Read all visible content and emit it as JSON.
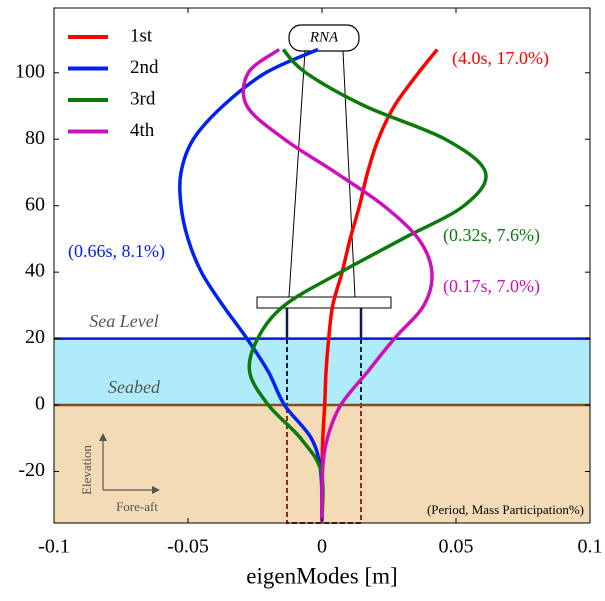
{
  "chart_data": {
    "type": "line",
    "x_label": "eigenModes [m]",
    "xlim": [
      -0.1,
      0.1
    ],
    "xticks": [
      -0.1,
      -0.05,
      0,
      0.05,
      0.1
    ],
    "ylim": [
      -35.5,
      119.5
    ],
    "yticks": [
      -20,
      0,
      20,
      40,
      60,
      80,
      100
    ],
    "y": [
      -35,
      -20,
      -10,
      0,
      10,
      20,
      30,
      40,
      50,
      60,
      70,
      80,
      90,
      100,
      107
    ],
    "series": [
      {
        "name": "1st",
        "color": "#ff0000",
        "annotation": "(4.0s, 17.0%)",
        "values": [
          0,
          0,
          0.0003,
          0.001,
          0.0015,
          0.0025,
          0.004,
          0.0075,
          0.0105,
          0.014,
          0.017,
          0.021,
          0.027,
          0.036,
          0.043
        ]
      },
      {
        "name": "2nd",
        "color": "#0022ee",
        "annotation": "(0.66s, 8.1%)",
        "values": [
          0,
          -0.0005,
          -0.004,
          -0.014,
          -0.02,
          -0.028,
          -0.037,
          -0.045,
          -0.05,
          -0.0526,
          -0.0526,
          -0.048,
          -0.037,
          -0.021,
          -0.0015
        ]
      },
      {
        "name": "3rd",
        "color": "#0b7a0b",
        "annotation": "(0.32s, 7.6%)",
        "values": [
          0,
          -0.0003,
          -0.008,
          -0.02,
          -0.027,
          -0.024,
          -0.014,
          0.007,
          0.03,
          0.053,
          0.061,
          0.046,
          0.016,
          -0.006,
          -0.0145
        ]
      },
      {
        "name": "4th",
        "color": "#cc11bb",
        "annotation": "(0.17s, 7.0%)",
        "values": [
          0,
          0.0002,
          0.002,
          0.007,
          0.017,
          0.027,
          0.038,
          0.041,
          0.036,
          0.023,
          0.005,
          -0.014,
          -0.028,
          -0.0275,
          -0.016
        ]
      }
    ],
    "sea_level": 20,
    "sea_level_label": "Sea Level",
    "seabed": 0,
    "seabed_label": "Seabed",
    "rna_label": "RNA",
    "elevation_label": "Elevation",
    "fore_aft_label": "Fore-aft",
    "note": "(Period, Mass Participation%)"
  }
}
